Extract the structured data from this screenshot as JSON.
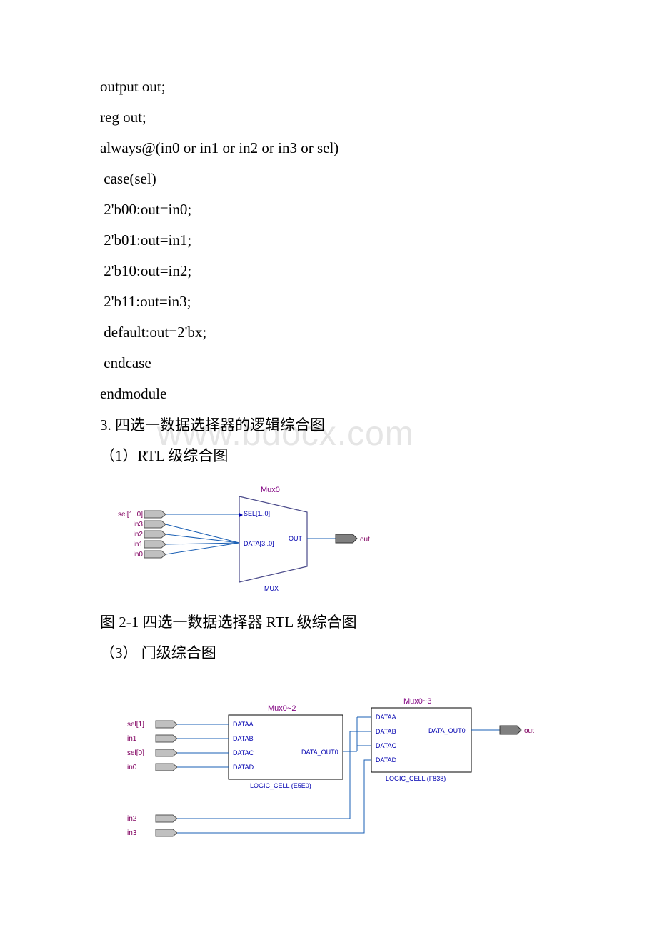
{
  "watermark": "www.bdocx.com",
  "code": [
    "output out;",
    "reg out;",
    "always@(in0 or in1 or in2 or in3 or sel)",
    " case(sel)",
    " 2'b00:out=in0;",
    " 2'b01:out=in1;",
    " 2'b10:out=in2;",
    " 2'b11:out=in3;",
    " default:out=2'bx;",
    " endcase",
    "endmodule"
  ],
  "heading3": "3. 四选一数据选择器的逻辑综合图",
  "sub1": "（1）RTL 级综合图",
  "caption1": "图 2-1 四选一数据选择器 RTL 级综合图",
  "sub2": "（3） 门级综合图",
  "rtl": {
    "block_label": "Mux0",
    "block_sublabel": "MUX",
    "ports_in": [
      "sel[1..0]",
      "in3",
      "in2",
      "in1",
      "in0"
    ],
    "ports_out": [
      "out"
    ],
    "pin_sel": "SEL[1..0]",
    "pin_data": "DATA[3..0]",
    "pin_out": "OUT",
    "colors": {
      "port_text": "#800060",
      "block_text": "#800080",
      "pin_text": "#0000b0",
      "wire": "#1a5fb4",
      "outline": "#4a4a8a",
      "pin_fill": "#c0c0c0",
      "out_fill": "#808080"
    }
  },
  "gate": {
    "block1_label": "Mux0~2",
    "block1_sublabel": "LOGIC_CELL (E5E0)",
    "block2_label": "Mux0~3",
    "block2_sublabel": "LOGIC_CELL (F838)",
    "ports1": [
      "sel[1]",
      "in1",
      "sel[0]",
      "in0"
    ],
    "ports2": [
      "in2",
      "in3"
    ],
    "ports_out": [
      "out"
    ],
    "pins1": [
      "DATAA",
      "DATAB",
      "DATAC",
      "DATAD"
    ],
    "pins2": [
      "DATAA",
      "DATAB",
      "DATAC",
      "DATAD"
    ],
    "pin_out": "DATA_OUT0",
    "colors": {
      "port_text": "#800060",
      "block_text": "#800080",
      "pin_text": "#0000b0",
      "wire": "#1a5fb4",
      "outline": "#000000",
      "pin_fill": "#c0c0c0",
      "out_fill": "#808080"
    }
  }
}
